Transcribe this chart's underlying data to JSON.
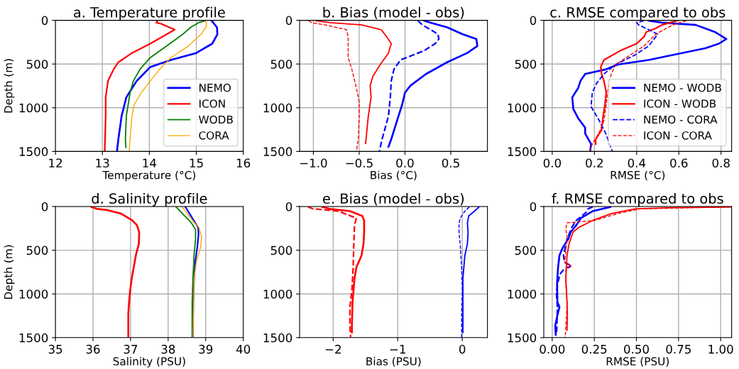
{
  "chart_data": [
    {
      "type": "line",
      "title": "a. Temperature profile",
      "xlabel": "Temperature (°C)",
      "ylabel": "Depth (m)",
      "xlim": [
        12,
        16
      ],
      "xticks": [
        12,
        13,
        14,
        15,
        16
      ],
      "ylim": [
        1500,
        0
      ],
      "yticks": [
        0,
        500,
        1000,
        1500
      ],
      "grid": true,
      "legend": "lower right",
      "series": [
        {
          "name": "NEMO",
          "color": "#0000ff",
          "line_style": "solid",
          "x": [
            15.32,
            15.44,
            15.45,
            15.34,
            15.0,
            14.46,
            14.02,
            13.73,
            13.51,
            13.41,
            13.34,
            13.31
          ],
          "values": [
            0,
            80,
            160,
            267,
            374,
            454,
            534,
            694,
            881,
            1094,
            1361,
            1500
          ]
        },
        {
          "name": "ICON",
          "color": "#ff0000",
          "line_style": "solid",
          "x": [
            14.17,
            14.15,
            14.25,
            14.54,
            14.37,
            14.02,
            13.63,
            13.34,
            13.24,
            13.12,
            13.07,
            13.07,
            13.05
          ],
          "values": [
            0,
            27,
            40,
            107,
            160,
            267,
            374,
            480,
            560,
            694,
            881,
            1094,
            1500
          ]
        },
        {
          "name": "WODB",
          "color": "#008000",
          "line_style": "solid",
          "x": [
            15.17,
            15.05,
            14.88,
            14.71,
            14.37,
            14.02,
            13.8,
            13.66,
            13.59,
            13.51,
            13.49,
            13.5
          ],
          "values": [
            8,
            27,
            80,
            160,
            294,
            427,
            560,
            694,
            827,
            1094,
            1361,
            1455
          ]
        },
        {
          "name": "CORA",
          "color": "#ffa500",
          "line_style": "solid",
          "x": [
            15.2,
            15.22,
            15.1,
            14.83,
            14.46,
            14.22,
            14.02,
            13.83,
            13.68,
            13.63,
            13.59,
            13.57
          ],
          "values": [
            8,
            67,
            160,
            294,
            427,
            560,
            694,
            827,
            961,
            1094,
            1361,
            1500
          ]
        }
      ]
    },
    {
      "type": "line",
      "title": "b. Bias (model - obs)",
      "xlabel": "Bias (°C)",
      "xlim": [
        -1.15,
        0.9
      ],
      "xticks": [
        {
          "value": -1.0,
          "label": "−1.0"
        },
        {
          "value": -0.5,
          "label": "−0.5"
        },
        {
          "value": 0.0,
          "label": "0.0"
        },
        {
          "value": 0.5,
          "label": "0.5"
        }
      ],
      "ylim": [
        1500,
        0
      ],
      "yticks": [
        0,
        500,
        1000,
        1500
      ],
      "grid": true,
      "legend": false,
      "series": [
        {
          "color": "#0000ff",
          "line_style": "solid",
          "x": [
            0.21,
            0.28,
            0.46,
            0.63,
            0.78,
            0.79,
            0.68,
            0.46,
            0.23,
            0.06,
            0.0,
            -0.03,
            -0.07,
            -0.15,
            -0.18
          ],
          "values": [
            5,
            27,
            80,
            160,
            214,
            294,
            374,
            480,
            614,
            747,
            827,
            961,
            1094,
            1361,
            1446
          ]
        },
        {
          "color": "#0000ff",
          "line_style": "dashed",
          "x": [
            0.14,
            0.19,
            0.28,
            0.36,
            0.37,
            0.33,
            0.21,
            -0.05,
            -0.12,
            -0.15,
            -0.16,
            -0.18,
            -0.25,
            -0.28
          ],
          "values": [
            5,
            53,
            107,
            160,
            214,
            267,
            347,
            454,
            560,
            694,
            881,
            1094,
            1361,
            1500
          ]
        },
        {
          "color": "#ff0000",
          "line_style": "solid",
          "x": [
            -0.97,
            -0.82,
            -0.47,
            -0.26,
            -0.2,
            -0.15,
            -0.18,
            -0.27,
            -0.35,
            -0.38,
            -0.37,
            -0.4,
            -0.42,
            -0.43
          ],
          "values": [
            5,
            27,
            53,
            107,
            187,
            267,
            374,
            507,
            640,
            747,
            881,
            1094,
            1308,
            1409
          ]
        },
        {
          "color": "#ff0000",
          "line_style": "dashed",
          "x": [
            -1.05,
            -1.02,
            -0.87,
            -0.64,
            -0.62,
            -0.62,
            -0.58,
            -0.53,
            -0.5,
            -0.5,
            -0.51,
            -0.53
          ],
          "values": [
            5,
            27,
            53,
            107,
            187,
            427,
            560,
            774,
            934,
            1094,
            1361,
            1500
          ]
        }
      ]
    },
    {
      "type": "line",
      "title": "c. RMSE compared to obs",
      "xlabel": "RMSE (°C)",
      "xlim": [
        -0.04,
        0.85
      ],
      "xticks": [
        {
          "value": 0,
          "label": "0.0"
        },
        {
          "value": 0.2,
          "label": "0.2"
        },
        {
          "value": 0.4,
          "label": "0.4"
        },
        {
          "value": 0.6,
          "label": "0.6"
        },
        {
          "value": 0.8,
          "label": "0.8"
        }
      ],
      "ylim": [
        1500,
        0
      ],
      "yticks": [
        0,
        500,
        1000,
        1500
      ],
      "grid": true,
      "legend": "lower right",
      "series": [
        {
          "name": "NEMO - WODB",
          "color": "#0000ff",
          "line_style": "solid",
          "x": [
            0.457,
            0.52,
            0.68,
            0.77,
            0.825,
            0.79,
            0.725,
            0.457,
            0.31,
            0.256,
            0.156,
            0.134,
            0.123,
            0.095,
            0.1,
            0.123,
            0.156,
            0.156,
            0.165,
            0.184,
            0.18
          ],
          "values": [
            5,
            27,
            53,
            133,
            214,
            267,
            320,
            454,
            507,
            560,
            614,
            694,
            774,
            881,
            1014,
            1121,
            1228,
            1294,
            1334,
            1415,
            1495
          ]
        },
        {
          "name": "ICON - WODB",
          "color": "#ff0000",
          "line_style": "solid",
          "x": [
            0.59,
            0.52,
            0.49,
            0.446,
            0.435,
            0.4,
            0.323,
            0.245,
            0.23,
            0.234,
            0.245,
            0.256,
            0.25,
            0.24,
            0.234,
            0.206,
            0.206
          ],
          "values": [
            5,
            53,
            93,
            133,
            187,
            267,
            347,
            454,
            534,
            614,
            694,
            827,
            961,
            1121,
            1254,
            1361,
            1415
          ]
        },
        {
          "name": "NEMO - CORA",
          "color": "#0000ff",
          "line_style": "dashed",
          "x": [
            0.435,
            0.4,
            0.41,
            0.457,
            0.5,
            0.457,
            0.39,
            0.3,
            0.245,
            0.21,
            0.19,
            0.184,
            0.223,
            0.256,
            0.284
          ],
          "values": [
            5,
            27,
            53,
            107,
            160,
            294,
            400,
            507,
            614,
            721,
            827,
            987,
            1148,
            1308,
            1495
          ]
        },
        {
          "name": "ICON - CORA",
          "color": "#ff0000",
          "line_style": "dashed",
          "x": [
            0.635,
            0.57,
            0.49,
            0.435,
            0.368,
            0.3,
            0.28,
            0.265,
            0.256,
            0.245,
            0.223,
            0.19,
            0.176
          ],
          "values": [
            5,
            53,
            160,
            294,
            400,
            507,
            614,
            774,
            961,
            1148,
            1281,
            1415,
            1500
          ]
        }
      ]
    },
    {
      "type": "line",
      "title": "d. Salinity profile",
      "xlabel": "Salinity (PSU)",
      "ylabel": "Depth (m)",
      "xlim": [
        35,
        40
      ],
      "xticks": [
        35,
        36,
        37,
        38,
        39,
        40
      ],
      "ylim": [
        1500,
        0
      ],
      "yticks": [
        0,
        500,
        1000,
        1500
      ],
      "grid": true,
      "legend": false,
      "series": [
        {
          "color": "#ff0000",
          "line_style": "solid",
          "x": [
            35.96,
            36.1,
            36.37,
            36.74,
            37.05,
            37.17,
            37.23,
            37.22,
            37.14,
            37.03,
            36.99,
            36.96,
            36.94,
            36.94
          ],
          "values": [
            5,
            27,
            40,
            80,
            160,
            214,
            294,
            427,
            560,
            827,
            961,
            1094,
            1228,
            1500
          ]
        },
        {
          "color": "#0000ff",
          "line_style": "solid",
          "x": [
            38.46,
            38.57,
            38.72,
            38.8,
            38.81,
            38.78,
            38.72,
            38.69,
            38.67,
            38.66
          ],
          "values": [
            5,
            80,
            187,
            240,
            320,
            454,
            640,
            827,
            1094,
            1500
          ]
        },
        {
          "color": "#008000",
          "line_style": "solid",
          "x": [
            38.21,
            38.38,
            38.62,
            38.73,
            38.73,
            38.69,
            38.66,
            38.64,
            38.64
          ],
          "values": [
            5,
            80,
            187,
            267,
            374,
            560,
            827,
            1094,
            1500
          ]
        },
        {
          "color": "#ffa500",
          "line_style": "solid",
          "x": [
            38.37,
            38.51,
            38.7,
            38.82,
            38.89,
            38.87,
            38.75,
            38.69,
            38.68,
            38.66
          ],
          "values": [
            5,
            80,
            187,
            240,
            347,
            454,
            640,
            827,
            1094,
            1500
          ]
        }
      ]
    },
    {
      "type": "line",
      "title": "e. Bias (model - obs)",
      "xlabel": "Bias (PSU)",
      "xlim": [
        -2.52,
        0.39
      ],
      "xticks": [
        {
          "value": -2,
          "label": "−2"
        },
        {
          "value": -1,
          "label": "−1"
        },
        {
          "value": 0,
          "label": "0"
        }
      ],
      "ylim": [
        1500,
        0
      ],
      "yticks": [
        0,
        500,
        1000,
        1500
      ],
      "grid": true,
      "legend": false,
      "series": [
        {
          "color": "#ff0000",
          "line_style": "solid",
          "x": [
            -2.17,
            -2.06,
            -1.74,
            -1.55,
            -1.52,
            -1.52,
            -1.53,
            -1.56,
            -1.64,
            -1.67,
            -1.7,
            -1.71,
            -1.71
          ],
          "values": [
            5,
            27,
            53,
            107,
            160,
            294,
            427,
            560,
            694,
            827,
            1094,
            1361,
            1441
          ]
        },
        {
          "color": "#ff0000",
          "line_style": "dashed",
          "x": [
            -2.39,
            -2.31,
            -1.92,
            -1.64,
            -1.67,
            -1.68,
            -1.69,
            -1.71,
            -1.74,
            -1.74,
            -1.73
          ],
          "values": [
            5,
            27,
            53,
            133,
            214,
            427,
            694,
            961,
            1148,
            1361,
            1500
          ]
        },
        {
          "color": "#0000ff",
          "line_style": "solid",
          "x": [
            0.26,
            0.19,
            0.1,
            0.08,
            0.09,
            0.08,
            0.04,
            0.01,
            0.01,
            0.01
          ],
          "values": [
            5,
            53,
            107,
            187,
            294,
            427,
            560,
            827,
            1094,
            1441
          ]
        },
        {
          "color": "#0000ff",
          "line_style": "dashed",
          "x": [
            0.11,
            0.04,
            -0.03,
            -0.05,
            -0.05,
            -0.03,
            -0.01,
            0.0,
            -0.01,
            -0.01
          ],
          "values": [
            5,
            53,
            133,
            187,
            294,
            454,
            694,
            961,
            1228,
            1500
          ]
        }
      ]
    },
    {
      "type": "line",
      "title": "f. RMSE compared to obs",
      "xlabel": "RMSE (PSU)",
      "xlim": [
        -0.05,
        1.065
      ],
      "xticks": [
        {
          "value": 0,
          "label": "0.00"
        },
        {
          "value": 0.25,
          "label": "0.25"
        },
        {
          "value": 0.5,
          "label": "0.50"
        },
        {
          "value": 0.75,
          "label": "0.75"
        },
        {
          "value": 1,
          "label": "1.00"
        }
      ],
      "ylim": [
        1500,
        0
      ],
      "yticks": [
        0,
        500,
        1000,
        1500
      ],
      "grid": true,
      "legend": false,
      "series": [
        {
          "color": "#0000ff",
          "line_style": "solid",
          "x": [
            0.345,
            0.24,
            0.17,
            0.143,
            0.109,
            0.095,
            0.06,
            0.043,
            0.035,
            0.029,
            0.031,
            0.043,
            0.03,
            0.018,
            0.021
          ],
          "values": [
            5,
            53,
            133,
            214,
            294,
            374,
            480,
            560,
            694,
            881,
            1094,
            1148,
            1254,
            1361,
            1468
          ]
        },
        {
          "color": "#0000ff",
          "line_style": "dashed",
          "x": [
            0.24,
            0.213,
            0.21,
            0.143,
            0.116,
            0.088,
            0.067,
            0.074,
            0.116,
            0.074,
            0.046,
            0.032,
            0.025,
            0.031,
            0.028,
            0.025
          ],
          "values": [
            5,
            27,
            53,
            160,
            240,
            374,
            560,
            640,
            681,
            707,
            774,
            881,
            987,
            1148,
            1361,
            1468
          ]
        },
        {
          "color": "#ff0000",
          "line_style": "solid",
          "x": [
            1.06,
            0.714,
            0.49,
            0.352,
            0.24,
            0.157,
            0.123,
            0.1,
            0.088,
            0.081,
            0.088,
            0.09,
            0.088
          ],
          "values": [
            5,
            13,
            27,
            80,
            160,
            240,
            294,
            427,
            560,
            827,
            1094,
            1254,
            1415
          ]
        },
        {
          "color": "#ff0000",
          "line_style": "dashed",
          "x": [
            1.06,
            0.85,
            0.52,
            0.39,
            0.25,
            0.088,
            0.081,
            0.088,
            0.081,
            0.074,
            0.116,
            0.081,
            0.081,
            0.088,
            0.085,
            0.081,
            0.077
          ],
          "values": [
            5,
            13,
            27,
            80,
            160,
            187,
            254,
            347,
            507,
            640,
            681,
            721,
            881,
            1094,
            1254,
            1361,
            1500
          ]
        }
      ]
    }
  ]
}
